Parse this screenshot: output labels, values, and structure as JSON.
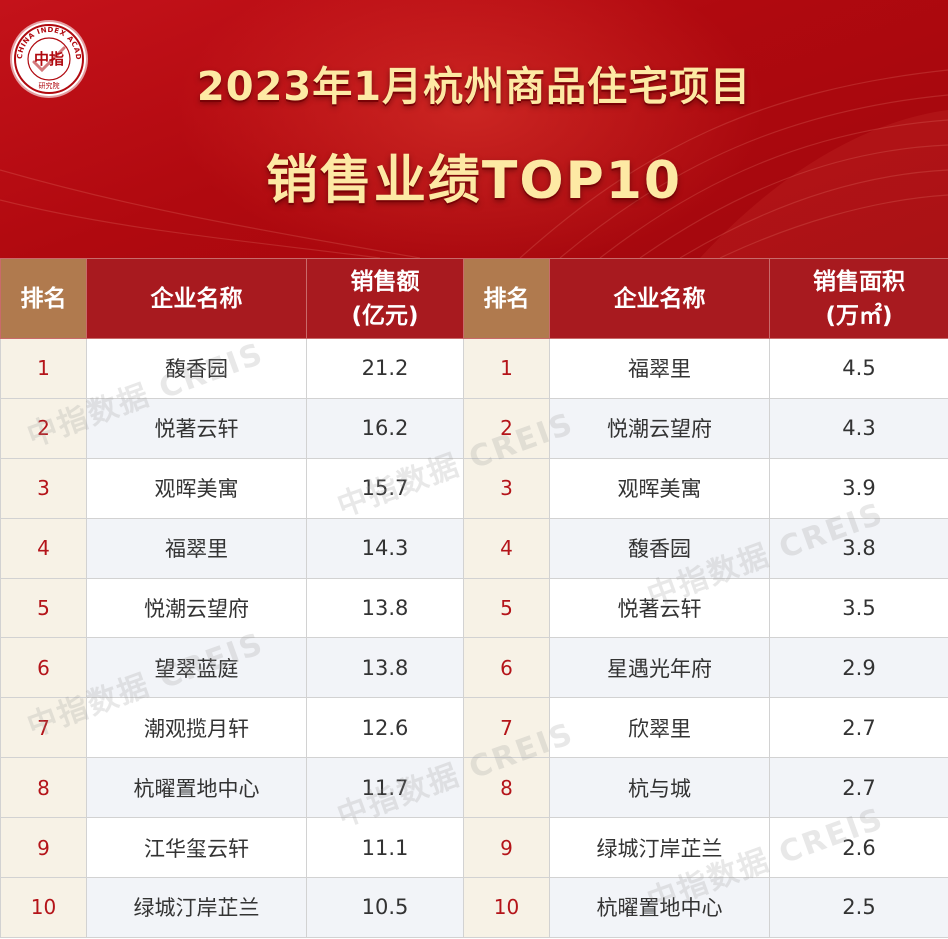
{
  "title": {
    "line1": "2023年1月杭州商品住宅项目",
    "line2": "销售业绩TOP10"
  },
  "logo": {
    "icon": "china-index-academy-seal",
    "text": "中指",
    "ring_text": "CHINA INDEX ACADEMY",
    "sub_text": "研究院"
  },
  "watermark": "中指数据 CREIS",
  "colors": {
    "banner_red": "#b0090f",
    "title_gold": "#fde9a4",
    "header_red": "#a81a1f",
    "rank_header": "#b07a4e",
    "rank_text": "#b41419"
  },
  "left_table": {
    "headers": {
      "rank": "排名",
      "name": "企业名称",
      "value_line1": "销售额",
      "value_line2": "(亿元)"
    },
    "rows": [
      {
        "rank": "1",
        "name": "馥香园",
        "value": "21.2"
      },
      {
        "rank": "2",
        "name": "悦著云轩",
        "value": "16.2"
      },
      {
        "rank": "3",
        "name": "观晖美寓",
        "value": "15.7"
      },
      {
        "rank": "4",
        "name": "福翠里",
        "value": "14.3"
      },
      {
        "rank": "5",
        "name": "悦潮云望府",
        "value": "13.8"
      },
      {
        "rank": "6",
        "name": "望翠蓝庭",
        "value": "13.8"
      },
      {
        "rank": "7",
        "name": "潮观揽月轩",
        "value": "12.6"
      },
      {
        "rank": "8",
        "name": "杭曜置地中心",
        "value": "11.7"
      },
      {
        "rank": "9",
        "name": "江华玺云轩",
        "value": "11.1"
      },
      {
        "rank": "10",
        "name": "绿城汀岸芷兰",
        "value": "10.5"
      }
    ]
  },
  "right_table": {
    "headers": {
      "rank": "排名",
      "name": "企业名称",
      "value_line1": "销售面积",
      "value_line2": "(万㎡)"
    },
    "rows": [
      {
        "rank": "1",
        "name": "福翠里",
        "value": "4.5"
      },
      {
        "rank": "2",
        "name": "悦潮云望府",
        "value": "4.3"
      },
      {
        "rank": "3",
        "name": "观晖美寓",
        "value": "3.9"
      },
      {
        "rank": "4",
        "name": "馥香园",
        "value": "3.8"
      },
      {
        "rank": "5",
        "name": "悦著云轩",
        "value": "3.5"
      },
      {
        "rank": "6",
        "name": "星遇光年府",
        "value": "2.9"
      },
      {
        "rank": "7",
        "name": "欣翠里",
        "value": "2.7"
      },
      {
        "rank": "8",
        "name": "杭与城",
        "value": "2.7"
      },
      {
        "rank": "9",
        "name": "绿城汀岸芷兰",
        "value": "2.6"
      },
      {
        "rank": "10",
        "name": "杭曜置地中心",
        "value": "2.5"
      }
    ]
  }
}
